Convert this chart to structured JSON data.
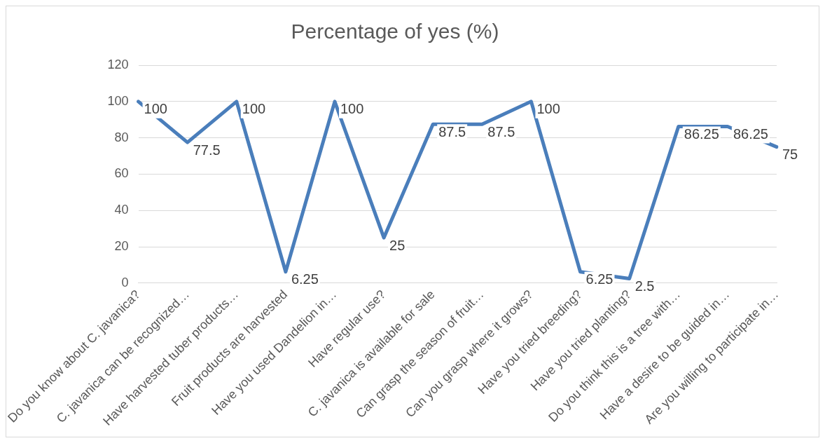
{
  "chart_data": {
    "type": "line",
    "title": "Percentage of yes (%)",
    "categories": [
      "Do you know about C. javanica?",
      "C. javanica can be recognized…",
      "Have harvested tuber products…",
      "Fruit products are harvested",
      "Have you used Dandelion in…",
      "Have regular use?",
      "C. javanica is available for sale",
      "Can grasp the season of fruit…",
      "Can you grasp where it grows?",
      "Have you tried breeding?",
      "Have you tried planting?",
      "Do you think this is a tree with…",
      "Have a desire to be guided in…",
      "Are you willing to participate in…"
    ],
    "series": [
      {
        "color": "#4a7ebb",
        "values": [
          100,
          77.5,
          100,
          6.25,
          100,
          25,
          87.5,
          87.5,
          100,
          6.25,
          2.5,
          86.25,
          86.25,
          75
        ]
      }
    ],
    "ylim": [
      0,
      120
    ],
    "yticks": [
      0,
      20,
      40,
      60,
      80,
      100,
      120
    ],
    "grid": "y",
    "legend": false,
    "marker": "none",
    "line_style": "solid",
    "data_labels": true
  }
}
